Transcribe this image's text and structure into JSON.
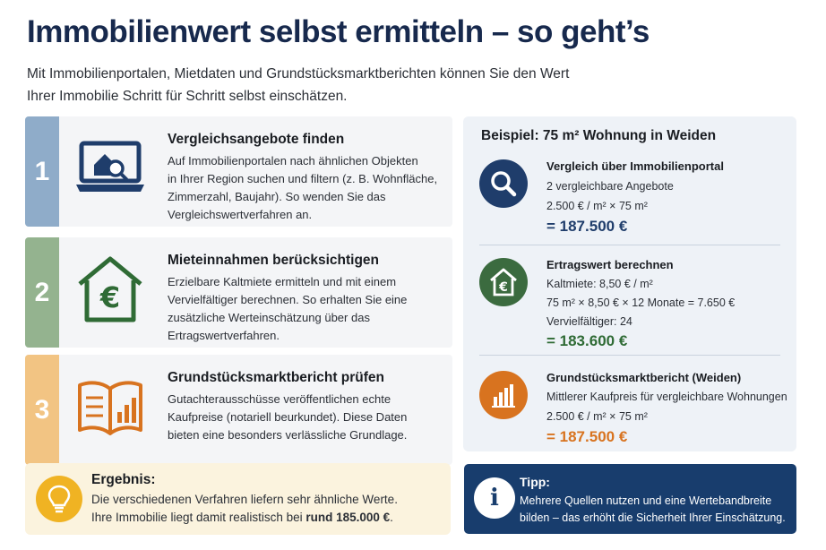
{
  "header": {
    "title": "Immobilienwert selbst ermitteln – so geht’s",
    "intro_line1": "Mit Immobilienportalen, Mietdaten und Grundstücksmarktberichten können Sie den Wert",
    "intro_line2": "Ihrer Immobilie Schritt für Schritt selbst einschätzen."
  },
  "steps": [
    {
      "number": "1",
      "color": "#8facc9",
      "icon": "laptop-house-search-icon",
      "title": "Vergleichsangebote finden",
      "lines": [
        "Auf Immobilienportalen nach ähnlichen Objekten",
        "in Ihrer Region suchen und filtern (z. B. Wohnfläche,",
        "Zimmerzahl, Baujahr). So wenden Sie das",
        "Vergleichswertverfahren an."
      ]
    },
    {
      "number": "2",
      "color": "#94b38f",
      "icon": "house-euro-icon",
      "title": "Mieteinnahmen berücksichtigen",
      "lines": [
        "Erzielbare Kaltmiete ermitteln und mit einem",
        "Vervielfältiger berechnen. So erhalten Sie eine",
        "zusätzliche Werteinschätzung über das",
        "Ertragswertverfahren."
      ]
    },
    {
      "number": "3",
      "color": "#f2c483",
      "icon": "open-book-chart-icon",
      "title": "Grundstücksmarktbericht prüfen",
      "lines": [
        "Gutachterausschüsse veröffentlichen echte",
        "Kaufpreise (notariell beurkundet). Diese Daten",
        "bieten eine besonders verlässliche Grundlage."
      ]
    }
  ],
  "example": {
    "title": "Beispiel: 75 m² Wohnung in Weiden",
    "items": [
      {
        "icon": "magnifier-icon",
        "color": "#1f3d6b",
        "heading": "Vergleich über Immobilienportal",
        "lines": [
          "2 vergleichbare Angebote",
          "2.500 € / m²    ×    75 m²"
        ],
        "result": "= 187.500 €",
        "result_color": "#1f3d6b"
      },
      {
        "icon": "house-euro-icon",
        "color": "#3b6b3f",
        "heading": "Ertragswert berechnen",
        "lines": [
          "Kaltmiete: 8,50 € / m²",
          "75 m²   ×   8,50 €   ×   12 Monate   = 7.650 €",
          "Vervielfältiger: 24"
        ],
        "result": "= 183.600 €",
        "result_color": "#2f6b35"
      },
      {
        "icon": "bar-chart-icon",
        "color": "#d8731f",
        "heading": "Grundstücksmarktbericht (Weiden)",
        "lines": [
          "Mittlerer Kaufpreis für vergleichbare Wohnungen",
          "2.500 € / m²   ×   75 m²"
        ],
        "result": "= 187.500 €",
        "result_color": "#d8731f"
      }
    ]
  },
  "result": {
    "icon": "lightbulb-icon",
    "heading": "Ergebnis:",
    "line1": "Die verschiedenen Verfahren liefern sehr ähnliche Werte.",
    "line2_prefix": "Ihre Immobilie liegt damit realistisch bei ",
    "line2_bold": "rund 185.000 €",
    "line2_suffix": "."
  },
  "tip": {
    "icon": "info-icon",
    "icon_glyph": "i",
    "heading": "Tipp:",
    "line1": "Mehrere Quellen nutzen und eine Wertebandbreite",
    "line2": "bilden – das erhöht die Sicherheit Ihrer Einschätzung."
  }
}
